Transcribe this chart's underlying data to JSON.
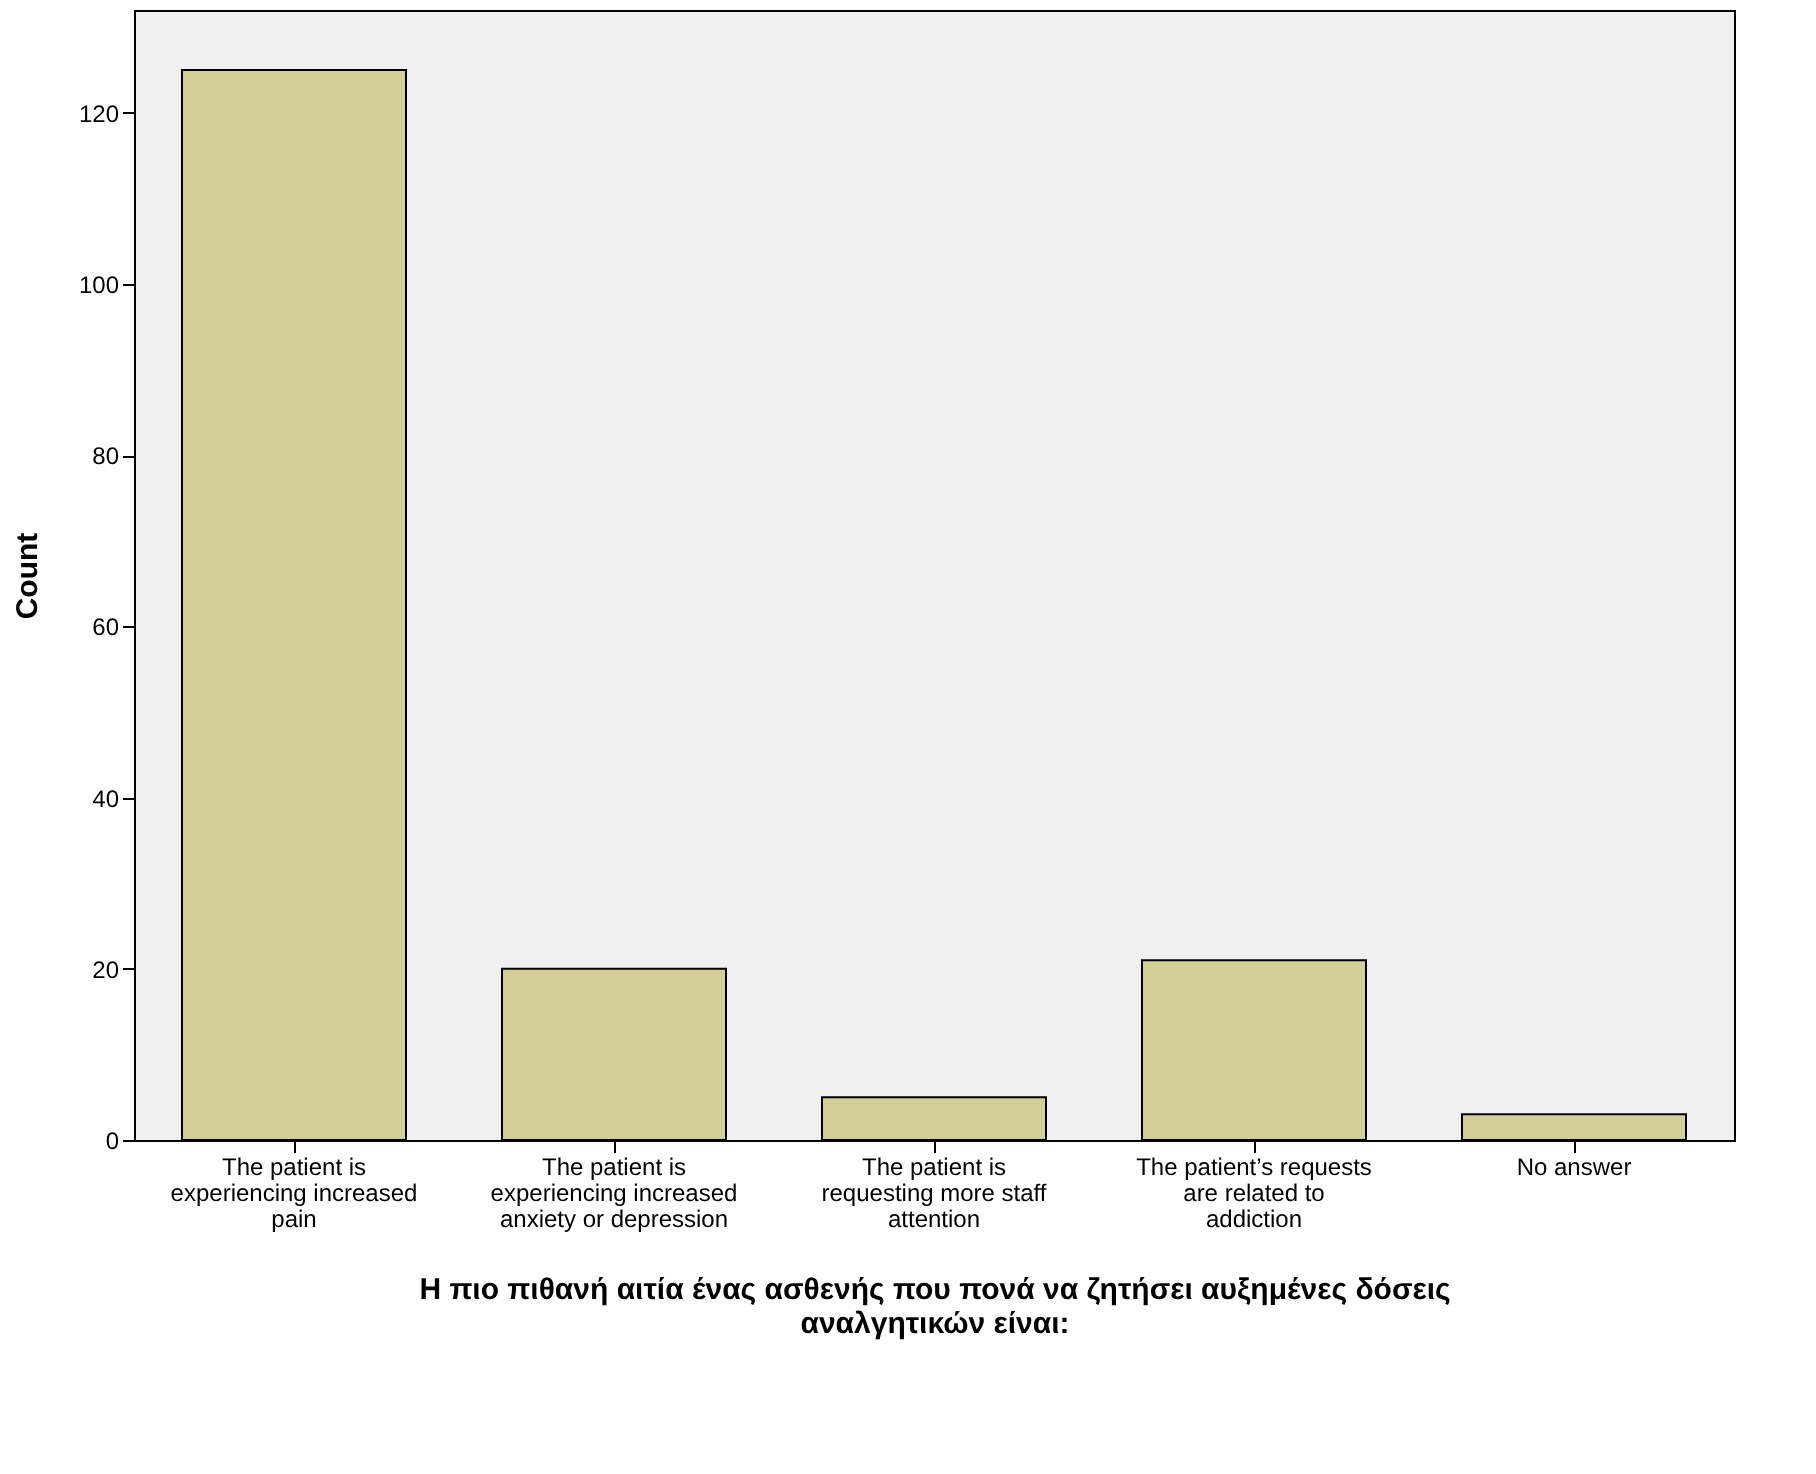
{
  "chart_data": {
    "type": "bar",
    "ylabel": "Count",
    "xlabel": "Η πιο πιθανή αιτία ένας ασθενής που πονά να ζητήσει αυξημένες δόσεις αναλγητικών είναι:",
    "categories": [
      "The patient is experiencing increased pain",
      "The patient is experiencing increased anxiety or depression",
      "The patient is requesting more staff attention",
      "The patient’s requests are related to addiction",
      "No answer"
    ],
    "values": [
      125,
      20,
      5,
      21,
      3
    ],
    "color": "#d3ce97",
    "ylim": [
      0,
      132
    ],
    "yticks": [
      0,
      20,
      40,
      60,
      80,
      100,
      120
    ],
    "grid": false
  }
}
